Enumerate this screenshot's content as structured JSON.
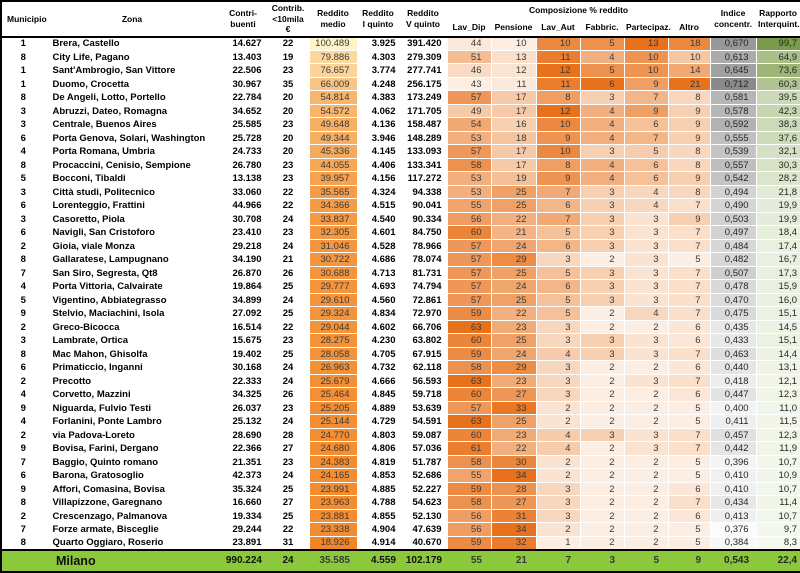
{
  "chart_data": {
    "type": "table",
    "header": {
      "municipio": "Municipio",
      "zona": "Zona",
      "contribuenti": "Contri-\nbuenti",
      "contrib_lt10k": "Contrib.\n<10mila €",
      "reddito_medio": "Reddito\nmedio",
      "reddito_i_quinto": "Reddito\nI quinto",
      "reddito_v_quinto": "Reddito\nV quinto",
      "composizione_group": "Composizione % reddito",
      "lav_dip": "Lav_Dip",
      "pensione": "Pensione",
      "lav_aut": "Lav_Aut",
      "fabbric": "Fabbric.",
      "partecipaz": "Partecipaz.",
      "altro": "Altro",
      "indice_concentr": "Indice\nconcentr.",
      "rapporto_interquint": "Rapporto\nInterquint."
    },
    "rows": [
      [
        "1",
        "Brera, Castello",
        "14.627",
        "22",
        "100.489",
        "3.925",
        "391.420",
        "44",
        "10",
        "10",
        "5",
        "13",
        "18",
        "0,670",
        "99,7"
      ],
      [
        "8",
        "City Life, Pagano",
        "13.403",
        "19",
        "79.886",
        "4.303",
        "279.309",
        "51",
        "13",
        "11",
        "4",
        "10",
        "10",
        "0,613",
        "64,9"
      ],
      [
        "1",
        "Sant'Ambrogio, San Vittore",
        "22.506",
        "23",
        "76.657",
        "3.774",
        "277.741",
        "46",
        "12",
        "12",
        "5",
        "10",
        "14",
        "0,645",
        "73,6"
      ],
      [
        "1",
        "Duomo, Crocetta",
        "30.967",
        "35",
        "66.009",
        "4.248",
        "256.175",
        "43",
        "11",
        "11",
        "6",
        "9",
        "21",
        "0,712",
        "60,3"
      ],
      [
        "8",
        "De Angeli, Lotto, Portello",
        "22.784",
        "20",
        "54.814",
        "4.383",
        "173.249",
        "57",
        "17",
        "8",
        "3",
        "7",
        "8",
        "0,581",
        "39,5"
      ],
      [
        "3",
        "Abruzzi, Dateo, Romagna",
        "34.652",
        "20",
        "54.572",
        "4.062",
        "171.705",
        "49",
        "17",
        "12",
        "4",
        "9",
        "9",
        "0,578",
        "42,3"
      ],
      [
        "3",
        "Centrale, Buenos Aires",
        "25.585",
        "23",
        "49.648",
        "4.136",
        "158.487",
        "54",
        "16",
        "10",
        "4",
        "6",
        "9",
        "0,592",
        "38,3"
      ],
      [
        "6",
        "Porta Genova, Solari, Washington",
        "25.728",
        "20",
        "49.344",
        "3.946",
        "148.289",
        "53",
        "18",
        "9",
        "4",
        "7",
        "9",
        "0,555",
        "37,6"
      ],
      [
        "4",
        "Porta Romana, Umbria",
        "24.733",
        "20",
        "45.336",
        "4.145",
        "133.093",
        "57",
        "17",
        "10",
        "3",
        "5",
        "8",
        "0,539",
        "32,1"
      ],
      [
        "8",
        "Procaccini, Cenisio, Sempione",
        "26.780",
        "23",
        "44.055",
        "4.406",
        "133.341",
        "58",
        "17",
        "8",
        "4",
        "6",
        "8",
        "0,557",
        "30,3"
      ],
      [
        "5",
        "Bocconi, Tibaldi",
        "13.138",
        "23",
        "39.957",
        "4.156",
        "117.272",
        "53",
        "19",
        "9",
        "4",
        "6",
        "9",
        "0,542",
        "28,2"
      ],
      [
        "3",
        "Città studi, Politecnico",
        "33.060",
        "22",
        "35.565",
        "4.324",
        "94.338",
        "53",
        "25",
        "7",
        "3",
        "4",
        "8",
        "0,494",
        "21,8"
      ],
      [
        "6",
        "Lorenteggio, Frattini",
        "44.966",
        "22",
        "34.366",
        "4.515",
        "90.041",
        "55",
        "25",
        "6",
        "3",
        "4",
        "7",
        "0,490",
        "19,9"
      ],
      [
        "3",
        "Casoretto, Piola",
        "30.708",
        "24",
        "33.837",
        "4.540",
        "90.334",
        "56",
        "22",
        "7",
        "3",
        "3",
        "9",
        "0,503",
        "19,9"
      ],
      [
        "6",
        "Navigli, San Cristoforo",
        "23.410",
        "23",
        "32.305",
        "4.601",
        "84.750",
        "60",
        "21",
        "5",
        "3",
        "3",
        "7",
        "0,497",
        "18,4"
      ],
      [
        "2",
        "Gioia, viale Monza",
        "29.218",
        "24",
        "31.046",
        "4.528",
        "78.966",
        "57",
        "24",
        "6",
        "3",
        "3",
        "7",
        "0,484",
        "17,4"
      ],
      [
        "8",
        "Gallaratese, Lampugnano",
        "34.190",
        "21",
        "30.722",
        "4.686",
        "78.074",
        "57",
        "29",
        "3",
        "2",
        "3",
        "5",
        "0,482",
        "16,7"
      ],
      [
        "7",
        "San Siro, Segresta, Qt8",
        "26.870",
        "26",
        "30.688",
        "4.713",
        "81.731",
        "57",
        "25",
        "5",
        "3",
        "3",
        "7",
        "0,507",
        "17,3"
      ],
      [
        "4",
        "Porta Vittoria, Calvairate",
        "19.864",
        "25",
        "29.777",
        "4.693",
        "74.794",
        "57",
        "24",
        "6",
        "3",
        "3",
        "7",
        "0,478",
        "15,9"
      ],
      [
        "5",
        "Vigentino, Abbiategrasso",
        "34.899",
        "24",
        "29.610",
        "4.560",
        "72.861",
        "57",
        "25",
        "5",
        "3",
        "3",
        "7",
        "0,470",
        "16,0"
      ],
      [
        "9",
        "Stelvio, Maciachini, Isola",
        "27.092",
        "25",
        "29.324",
        "4.834",
        "72.970",
        "59",
        "22",
        "5",
        "2",
        "4",
        "7",
        "0,475",
        "15,1"
      ],
      [
        "2",
        "Greco-Bicocca",
        "16.514",
        "22",
        "29.044",
        "4.602",
        "66.706",
        "63",
        "23",
        "3",
        "2",
        "2",
        "6",
        "0,435",
        "14,5"
      ],
      [
        "3",
        "Lambrate, Ortica",
        "15.675",
        "23",
        "28.275",
        "4.230",
        "63.802",
        "60",
        "25",
        "3",
        "3",
        "3",
        "6",
        "0,433",
        "15,1"
      ],
      [
        "8",
        "Mac Mahon, Ghisolfa",
        "19.402",
        "25",
        "28.058",
        "4.705",
        "67.915",
        "59",
        "24",
        "4",
        "3",
        "3",
        "7",
        "0,463",
        "14,4"
      ],
      [
        "6",
        "Primaticcio, Inganni",
        "30.168",
        "24",
        "26.963",
        "4.732",
        "62.118",
        "58",
        "29",
        "3",
        "2",
        "2",
        "6",
        "0,440",
        "13,1"
      ],
      [
        "2",
        "Precotto",
        "22.333",
        "24",
        "25.679",
        "4.666",
        "56.593",
        "63",
        "23",
        "3",
        "2",
        "3",
        "7",
        "0,418",
        "12,1"
      ],
      [
        "4",
        "Corvetto, Mazzini",
        "34.325",
        "26",
        "25.464",
        "4.845",
        "59.718",
        "60",
        "27",
        "3",
        "2",
        "2",
        "6",
        "0,447",
        "12,3"
      ],
      [
        "9",
        "Niguarda, Fulvio Testi",
        "26.037",
        "23",
        "25.205",
        "4.889",
        "53.639",
        "57",
        "33",
        "2",
        "2",
        "2",
        "5",
        "0,400",
        "11,0"
      ],
      [
        "4",
        "Forlanini, Ponte Lambro",
        "25.132",
        "24",
        "25.144",
        "4.729",
        "54.591",
        "63",
        "25",
        "2",
        "2",
        "2",
        "5",
        "0,411",
        "11,5"
      ],
      [
        "2",
        "via Padova-Loreto",
        "28.690",
        "28",
        "24.770",
        "4.803",
        "59.087",
        "60",
        "23",
        "4",
        "3",
        "3",
        "7",
        "0,457",
        "12,3"
      ],
      [
        "9",
        "Bovisa, Farini, Dergano",
        "22.366",
        "27",
        "24.680",
        "4.806",
        "57.036",
        "61",
        "22",
        "4",
        "2",
        "3",
        "7",
        "0,442",
        "11,9"
      ],
      [
        "7",
        "Baggio, Quinto romano",
        "21.351",
        "23",
        "24.383",
        "4.819",
        "51.787",
        "58",
        "30",
        "2",
        "2",
        "2",
        "5",
        "0,396",
        "10,7"
      ],
      [
        "6",
        "Barona, Gratosoglio",
        "42.373",
        "24",
        "24.165",
        "4.853",
        "52.686",
        "55",
        "34",
        "2",
        "2",
        "2",
        "5",
        "0,410",
        "10,9"
      ],
      [
        "9",
        "Affori, Comasina, Bovisa",
        "35.324",
        "25",
        "23.991",
        "4.885",
        "52.227",
        "59",
        "28",
        "3",
        "2",
        "2",
        "6",
        "0,410",
        "10,7"
      ],
      [
        "8",
        "Villapizzone, Garegnano",
        "16.660",
        "27",
        "23.963",
        "4.788",
        "54.623",
        "58",
        "27",
        "3",
        "2",
        "2",
        "7",
        "0,434",
        "11,4"
      ],
      [
        "2",
        "Crescenzago, Palmanova",
        "19.334",
        "25",
        "23.881",
        "4.855",
        "52.130",
        "56",
        "31",
        "3",
        "2",
        "2",
        "6",
        "0,413",
        "10,7"
      ],
      [
        "7",
        "Forze armate, Bisceglie",
        "29.244",
        "22",
        "23.338",
        "4.904",
        "47.639",
        "56",
        "34",
        "2",
        "2",
        "2",
        "5",
        "0,376",
        "9,7"
      ],
      [
        "8",
        "Quarto Oggiaro, Roserio",
        "23.891",
        "31",
        "18.926",
        "4.914",
        "40.670",
        "59",
        "32",
        "1",
        "2",
        "2",
        "5",
        "0,384",
        "8,3"
      ]
    ],
    "total_row": [
      "",
      "Milano",
      "990.224",
      "24",
      "35.585",
      "4.559",
      "102.179",
      "55",
      "21",
      "7",
      "3",
      "5",
      "9",
      "0,543",
      "22,4"
    ],
    "color_scales": {
      "reddito_medio": {
        "light": "#FEF4C8",
        "dark": "#F28627",
        "max_is": "light"
      },
      "composizione": {
        "light": "#FCEEE3",
        "dark": "#E8721C",
        "max_is": "dark"
      },
      "indice": {
        "light": "#FBFBFB",
        "dark": "#8A8A8A",
        "max_is": "dark"
      },
      "rapporto": {
        "light": "#F5F9EF",
        "dark": "#7A9B49",
        "max_is": "dark"
      }
    },
    "total_row_color": "#8CC83C"
  }
}
